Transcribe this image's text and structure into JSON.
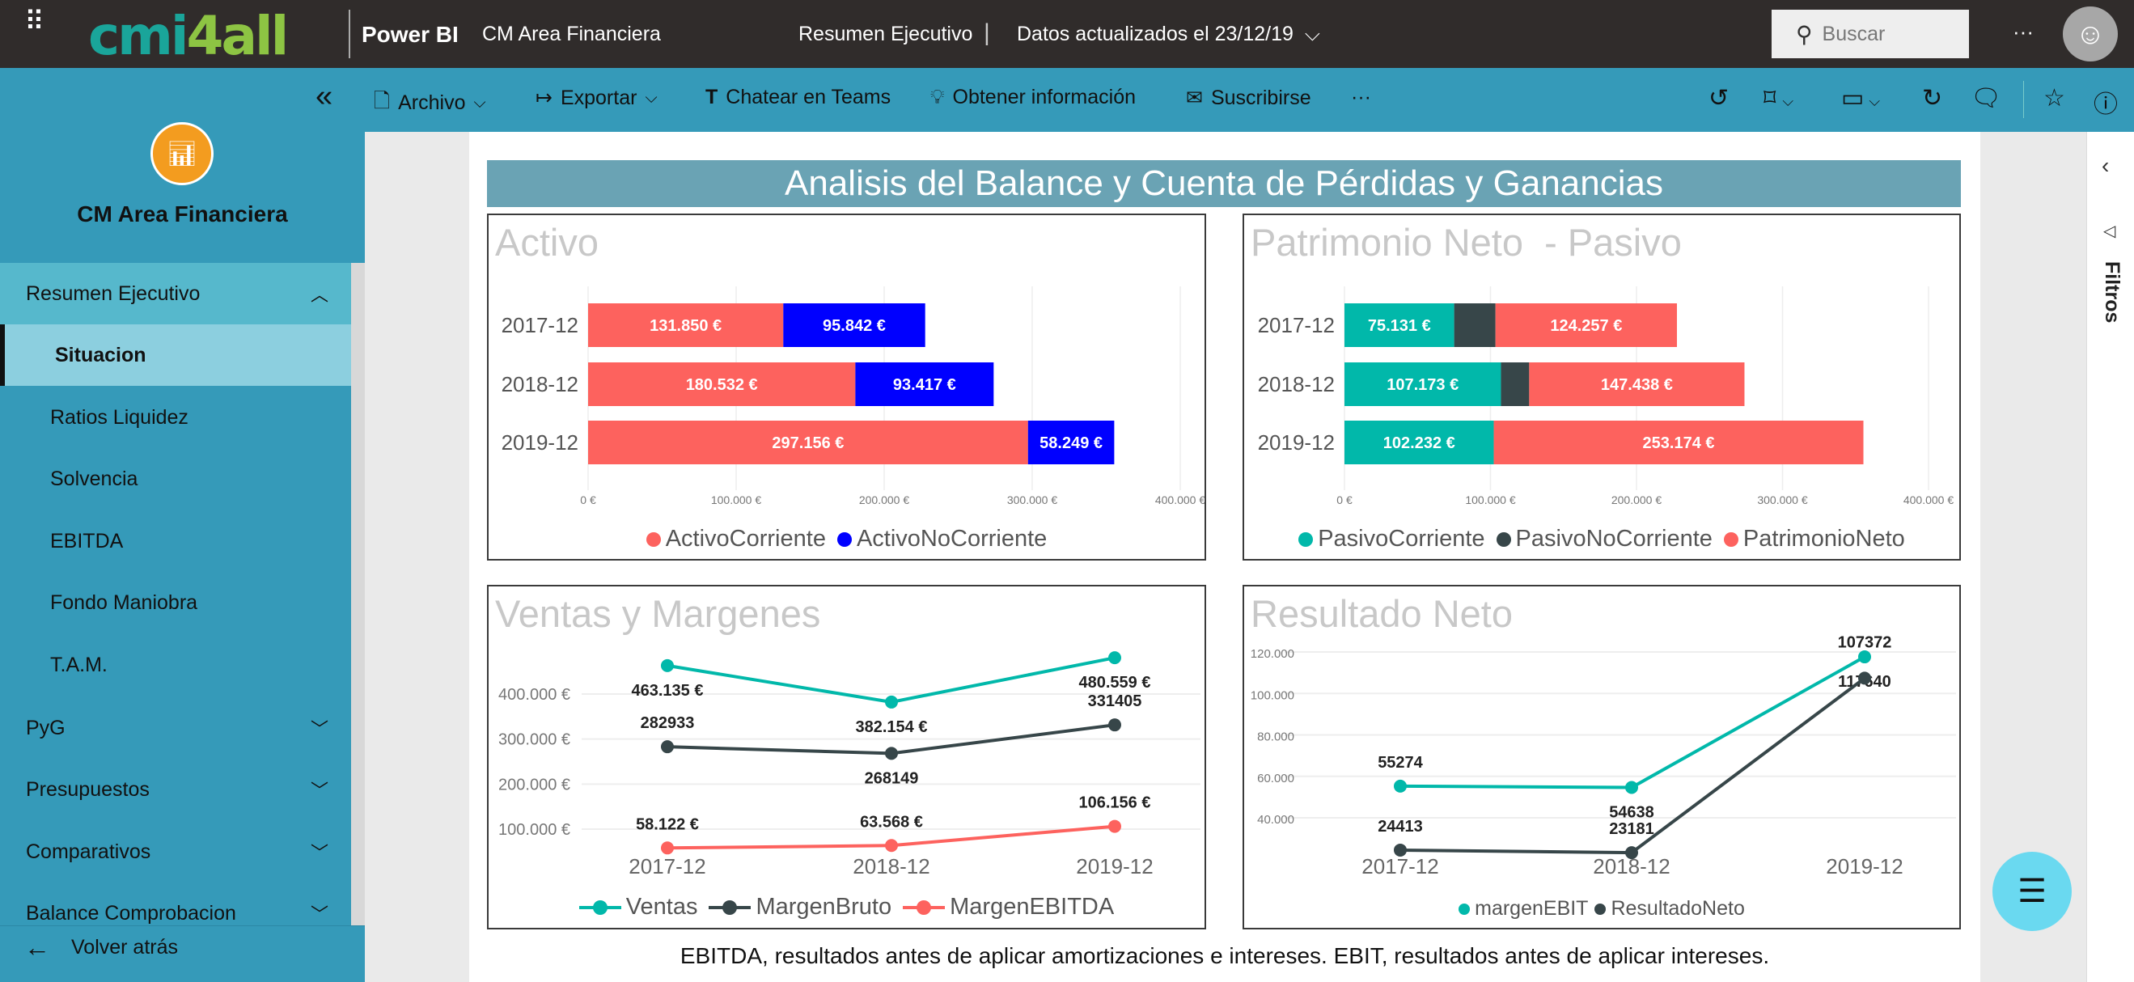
{
  "header": {
    "logo_part1": "cmi",
    "logo_part2": "4all",
    "product": "Power BI",
    "workspace": "CM Area Financiera",
    "report": "Resumen Ejecutivo",
    "separator": "|",
    "updated": "Datos actualizados el 23/12/19",
    "search_placeholder": "Buscar",
    "more": "···"
  },
  "toolbar": {
    "archivo": "Archivo",
    "exportar": "Exportar",
    "teams": "Chatear en Teams",
    "insights": "Obtener información",
    "subscribe": "Suscribirse",
    "more": "···"
  },
  "sidebar": {
    "title": "CM Area Financiera",
    "section": "Resumen Ejecutivo",
    "items": [
      "Situacion",
      "Ratios Liquidez",
      "Solvencia",
      "EBITDA",
      "Fondo Maniobra",
      "T.A.M."
    ],
    "groups": [
      "PyG",
      "Presupuestos",
      "Comparativos",
      "Balance Comprobacion"
    ],
    "back": "Volver atrás"
  },
  "filters_label": "Filtros",
  "report": {
    "title": "Analisis del Balance y Cuenta de Pérdidas y Ganancias",
    "footnote": "EBITDA, resultados antes de aplicar amortizaciones e intereses. EBIT, resultados antes de aplicar intereses."
  },
  "colors": {
    "red": "#fd625e",
    "blue": "#0000ff",
    "teal": "#01b8aa",
    "dark": "#374649",
    "accent": "#359ab9"
  },
  "chart_data": [
    {
      "type": "bar",
      "orientation": "horizontal",
      "stacked": true,
      "title": "Activo",
      "categories": [
        "2017-12",
        "2018-12",
        "2019-12"
      ],
      "xlim": [
        0,
        400000
      ],
      "ticks": [
        "0 €",
        "100.000 €",
        "200.000 €",
        "300.000 €",
        "400.000 €"
      ],
      "legend": "bottom",
      "series": [
        {
          "name": "ActivoCorriente",
          "color": "#fd625e",
          "values": [
            131850,
            180532,
            297156
          ],
          "labels": [
            "131.850 €",
            "180.532 €",
            "297.156 €"
          ]
        },
        {
          "name": "ActivoNoCorriente",
          "color": "#0000ff",
          "values": [
            95842,
            93417,
            58249
          ],
          "labels": [
            "95.842 €",
            "93.417 €",
            "58.249 €"
          ]
        }
      ]
    },
    {
      "type": "bar",
      "orientation": "horizontal",
      "stacked": true,
      "title": "Patrimonio Neto  - Pasivo",
      "categories": [
        "2017-12",
        "2018-12",
        "2019-12"
      ],
      "xlim": [
        0,
        400000
      ],
      "ticks": [
        "0 €",
        "100.000 €",
        "200.000 €",
        "300.000 €",
        "400.000 €"
      ],
      "legend": "bottom",
      "series": [
        {
          "name": "PasivoCorriente",
          "color": "#01b8aa",
          "values": [
            75131,
            107173,
            102232
          ],
          "labels": [
            "75.131 €",
            "107.173 €",
            "102.232 €"
          ]
        },
        {
          "name": "PasivoNoCorriente",
          "color": "#374649",
          "values": [
            28304,
            19338,
            0
          ],
          "labels": [
            null,
            null,
            null
          ]
        },
        {
          "name": "PatrimonioNeto",
          "color": "#fd625e",
          "values": [
            124257,
            147438,
            253174
          ],
          "labels": [
            "124.257 €",
            "147.438 €",
            "253.174 €"
          ]
        }
      ]
    },
    {
      "type": "line",
      "title": "Ventas y Margenes",
      "categories": [
        "2017-12",
        "2018-12",
        "2019-12"
      ],
      "ylim": [
        0,
        500000
      ],
      "yticks": [
        100000,
        200000,
        300000,
        400000
      ],
      "ytick_labels": [
        "100.000 €",
        "200.000 €",
        "300.000 €",
        "400.000 €"
      ],
      "grid": true,
      "legend": "bottom",
      "series": [
        {
          "name": "Ventas",
          "color": "#01b8aa",
          "values": [
            463135,
            382154,
            480559
          ],
          "labels": [
            "463.135 €",
            "382.154 €",
            "480.559 €"
          ]
        },
        {
          "name": "MargenBruto",
          "color": "#374649",
          "values": [
            282933,
            268149,
            331405
          ],
          "labels": [
            "282933",
            "268149",
            "331405"
          ]
        },
        {
          "name": "MargenEBITDA",
          "color": "#fd625e",
          "values": [
            58122,
            63568,
            106156
          ],
          "labels": [
            "58.122 €",
            "63.568 €",
            "106.156 €"
          ]
        }
      ]
    },
    {
      "type": "line",
      "title": "Resultado Neto",
      "categories": [
        "2017-12",
        "2018-12",
        "2019-12"
      ],
      "ylim": [
        20000,
        120000
      ],
      "yticks": [
        40000,
        60000,
        80000,
        100000,
        120000
      ],
      "ytick_labels": [
        "40.000",
        "60.000",
        "80.000",
        "100.000",
        "120.000"
      ],
      "grid": true,
      "legend": "bottom",
      "series": [
        {
          "name": "margenEBIT",
          "color": "#01b8aa",
          "values": [
            55274,
            54638,
            117640
          ],
          "labels": [
            "55274",
            "54638",
            "117640"
          ]
        },
        {
          "name": "ResultadoNeto",
          "color": "#374649",
          "values": [
            24413,
            23181,
            107372
          ],
          "labels": [
            "24413",
            "23181",
            "107372"
          ]
        }
      ]
    }
  ]
}
